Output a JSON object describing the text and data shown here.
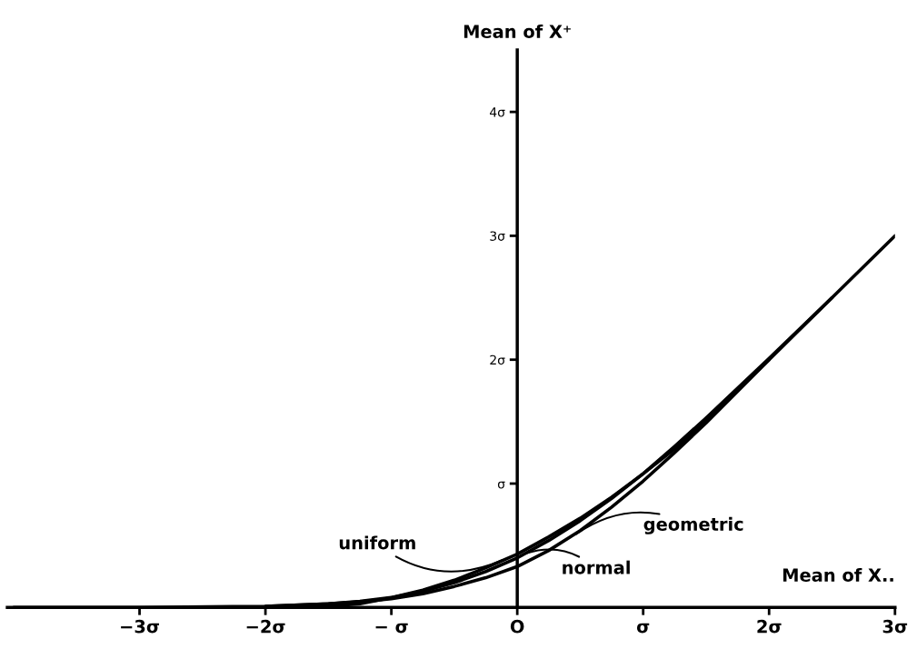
{
  "chart_data": {
    "type": "line",
    "xlabel": "Mean of X..",
    "ylabel": "Mean of X⁺",
    "x": [
      -4,
      -3,
      -2,
      -1.5,
      -1.25,
      -1,
      -0.75,
      -0.5,
      -0.25,
      0,
      0.25,
      0.5,
      0.75,
      1,
      1.25,
      1.5,
      2,
      2.5,
      3
    ],
    "series": [
      {
        "color": "#000000",
        "x": [
          -1.75,
          -1.5,
          -1.25,
          -1,
          -0.75,
          -0.5,
          -0.25,
          0,
          0.25,
          0.5,
          0.75,
          1,
          1.25,
          1.5,
          2
        ],
        "values": [
          0,
          0.01,
          0.03,
          0.08,
          0.14,
          0.22,
          0.32,
          0.43,
          0.57,
          0.72,
          0.89,
          1.08,
          1.28,
          1.51,
          2.0
        ]
      },
      {
        "color": "#000000",
        "values": [
          0,
          0,
          0.01,
          0.03,
          0.05,
          0.08,
          0.13,
          0.2,
          0.29,
          0.4,
          0.54,
          0.7,
          0.88,
          1.08,
          1.3,
          1.53,
          2.01,
          2.5,
          3.0
        ]
      },
      {
        "color": "#000000",
        "x": [
          -2,
          -1.5,
          -1.25,
          -1,
          -0.75,
          -0.5,
          -0.25,
          0,
          0.25,
          0.5,
          0.75,
          1,
          1.25,
          1.5,
          2,
          2.5
        ],
        "values": [
          0.01,
          0.03,
          0.045,
          0.07,
          0.11,
          0.17,
          0.24,
          0.33,
          0.46,
          0.62,
          0.81,
          1.02,
          1.25,
          1.49,
          2.0,
          2.5
        ]
      }
    ],
    "xlim": [
      -4.05,
      3
    ],
    "ylim": [
      0,
      4.5
    ],
    "xticks": [
      {
        "value": -3,
        "label": "−3σ"
      },
      {
        "value": -2,
        "label": "−2σ"
      },
      {
        "value": -1,
        "label": "− σ"
      },
      {
        "value": 0,
        "label": "O"
      },
      {
        "value": 1,
        "label": "σ"
      },
      {
        "value": 2,
        "label": "2σ"
      },
      {
        "value": 3,
        "label": "3σ"
      }
    ],
    "yticks": [
      {
        "value": 1,
        "label": "σ"
      },
      {
        "value": 2,
        "label": "2σ"
      },
      {
        "value": 3,
        "label": "3σ"
      },
      {
        "value": 4,
        "label": "4σ"
      }
    ],
    "annotations": [
      {
        "text": "uniform",
        "x": -0.1,
        "y": 0.39
      },
      {
        "text": "normal",
        "x": 0.05,
        "y": 0.43
      },
      {
        "text": "geometric",
        "x": 0.45,
        "y": 0.58
      }
    ],
    "grid": false,
    "legend": false,
    "marker": "none",
    "line_style": "solid"
  }
}
